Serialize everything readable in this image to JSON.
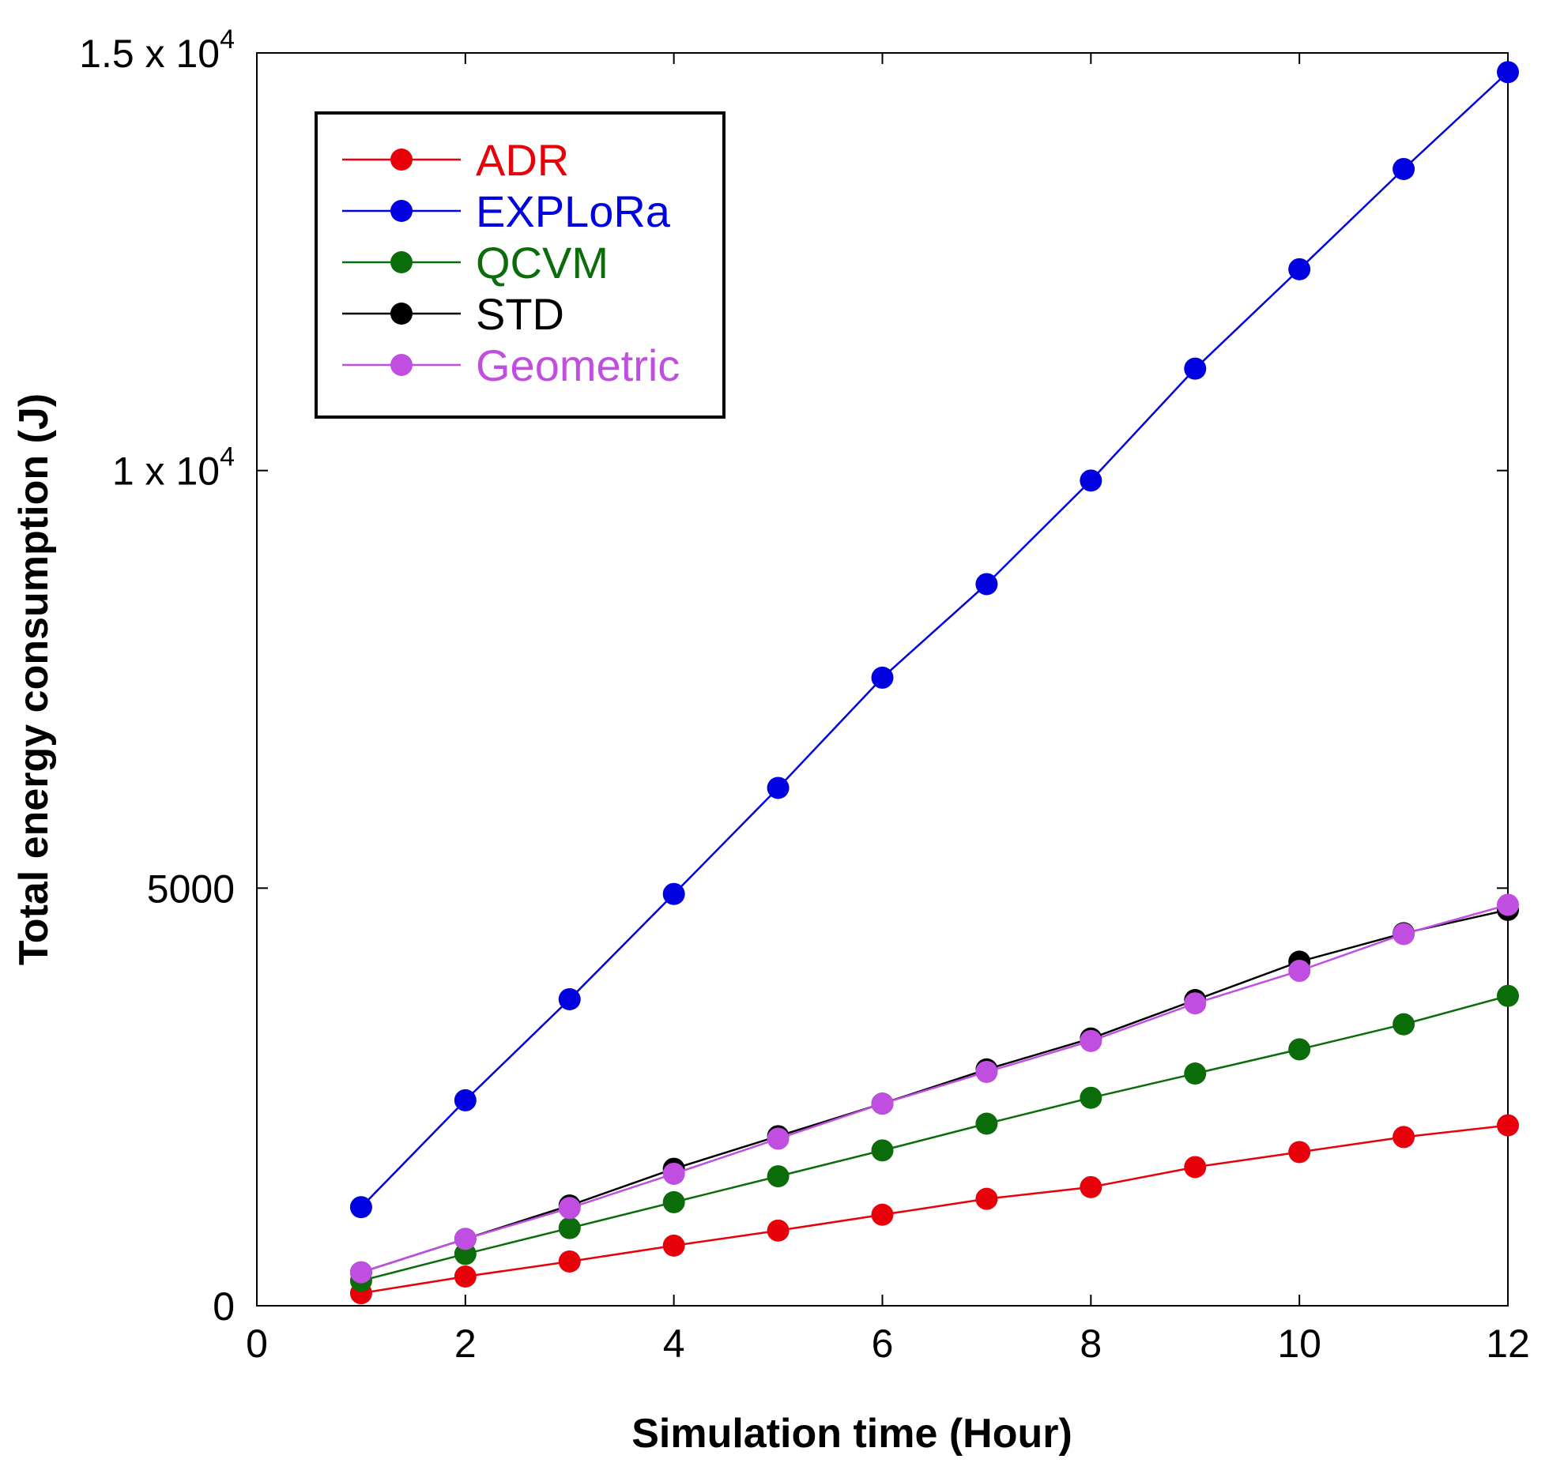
{
  "chart_data": {
    "type": "line",
    "title": "",
    "xlabel": "Simulation time (Hour)",
    "ylabel": "Total energy consumption (J)",
    "xlim": [
      0,
      12
    ],
    "ylim": [
      0,
      15000
    ],
    "x_ticks": [
      0,
      2,
      4,
      6,
      8,
      10,
      12
    ],
    "x_tick_labels": [
      "0",
      "2",
      "4",
      "6",
      "8",
      "10",
      "12"
    ],
    "y_ticks": [
      {
        "value": 0,
        "mantissa": "0",
        "exponent": ""
      },
      {
        "value": 5000,
        "mantissa": "5000",
        "exponent": ""
      },
      {
        "value": 10000,
        "mantissa": "1 x 10",
        "exponent": "4"
      },
      {
        "value": 15000,
        "mantissa": "1.5 x 10",
        "exponent": "4"
      }
    ],
    "grid": false,
    "legend_position": "top-left",
    "x": [
      1,
      2,
      3,
      4,
      5,
      6,
      7,
      8,
      9,
      10,
      11,
      12
    ],
    "series": [
      {
        "name": "ADR",
        "color": "#e8000b",
        "values": [
          150,
          350,
          530,
          720,
          900,
          1090,
          1280,
          1420,
          1660,
          1840,
          2020,
          2160
        ]
      },
      {
        "name": "EXPLoRa",
        "color": "#0000e0",
        "values": [
          1180,
          2460,
          3670,
          4930,
          6200,
          7520,
          8640,
          9880,
          11220,
          12410,
          13610,
          14770
        ]
      },
      {
        "name": "QCVM",
        "color": "#0a6d0a",
        "values": [
          300,
          620,
          930,
          1240,
          1550,
          1860,
          2180,
          2490,
          2780,
          3070,
          3370,
          3710
        ]
      },
      {
        "name": "STD",
        "color": "#000000",
        "values": [
          400,
          800,
          1200,
          1640,
          2030,
          2420,
          2830,
          3200,
          3660,
          4120,
          4460,
          4740
        ]
      },
      {
        "name": "Geometric",
        "color": "#c04ee0",
        "values": [
          400,
          800,
          1170,
          1580,
          2000,
          2420,
          2800,
          3170,
          3620,
          4010,
          4450,
          4800
        ]
      }
    ]
  }
}
